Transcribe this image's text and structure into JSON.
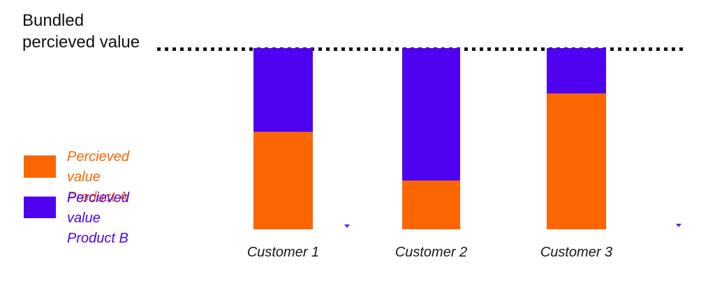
{
  "title": {
    "text": "Bundled\npercieved value"
  },
  "legend": {
    "items": [
      {
        "label": "Percieved value\nProduct A",
        "color": "#fb6602"
      },
      {
        "label": "Percieved value\nProduct B",
        "color": "#4e02ef"
      }
    ]
  },
  "chart_data": {
    "type": "bar",
    "stacked": true,
    "categories": [
      "Customer 1",
      "Customer 2",
      "Customer 3"
    ],
    "series": [
      {
        "name": "Percieved value Product A",
        "color": "#fb6602",
        "values": [
          54,
          27,
          75
        ]
      },
      {
        "name": "Percieved value Product B",
        "color": "#4e02ef",
        "values": [
          46,
          73,
          25
        ]
      }
    ],
    "reference_line": {
      "label": "Bundled percieved value",
      "value": 100,
      "style": "dotted",
      "color": "#141414"
    },
    "ylim": [
      0,
      100
    ],
    "xlabel": "",
    "ylabel": "",
    "grid": false,
    "legend_position": "left"
  },
  "stray_markers": {
    "color": "#5b21e6",
    "count": 2
  }
}
